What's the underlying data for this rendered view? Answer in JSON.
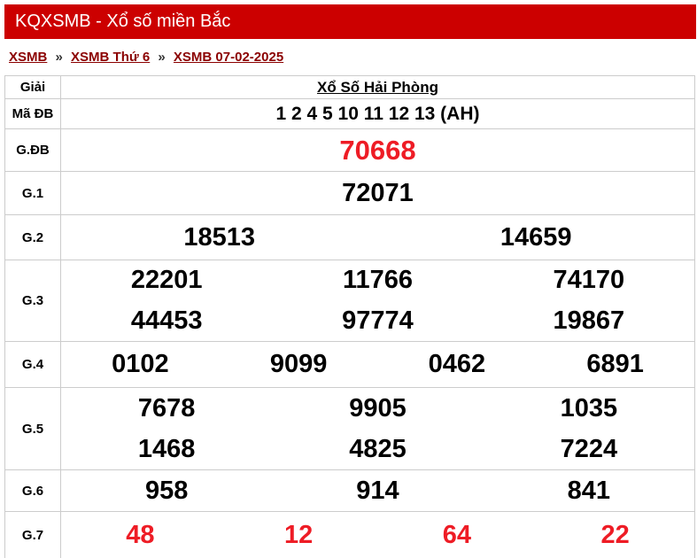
{
  "page": {
    "title_bar": "KQXSMB - Xổ số miền Bắc"
  },
  "breadcrumb": {
    "separator": "»",
    "links": [
      "XSMB",
      "XSMB Thứ 6",
      "XSMB 07-02-2025"
    ]
  },
  "results": {
    "header_label": "Giải",
    "province": "Xổ Số Hải Phòng",
    "rows": [
      {
        "id": "ma-db",
        "label": "Mã ĐB",
        "lines": [
          [
            "1 2 4 5 10 11 12 13 (AH)"
          ]
        ]
      },
      {
        "id": "g-db",
        "label": "G.ĐB",
        "lines": [
          [
            "70668"
          ]
        ]
      },
      {
        "id": "g1",
        "label": "G.1",
        "lines": [
          [
            "72071"
          ]
        ]
      },
      {
        "id": "g2",
        "label": "G.2",
        "lines": [
          [
            "18513",
            "14659"
          ]
        ]
      },
      {
        "id": "g3",
        "label": "G.3",
        "lines": [
          [
            "22201",
            "11766",
            "74170"
          ],
          [
            "44453",
            "97774",
            "19867"
          ]
        ]
      },
      {
        "id": "g4",
        "label": "G.4",
        "lines": [
          [
            "0102",
            "9099",
            "0462",
            "6891"
          ]
        ]
      },
      {
        "id": "g5",
        "label": "G.5",
        "lines": [
          [
            "7678",
            "9905",
            "1035"
          ],
          [
            "1468",
            "4825",
            "7224"
          ]
        ]
      },
      {
        "id": "g6",
        "label": "G.6",
        "lines": [
          [
            "958",
            "914",
            "841"
          ]
        ]
      },
      {
        "id": "g7",
        "label": "G.7",
        "lines": [
          [
            "48",
            "12",
            "64",
            "22"
          ]
        ]
      }
    ]
  },
  "colors": {
    "header_bg": "#cc0000",
    "header_text": "#ffffff",
    "link": "#8b0000",
    "special_number": "#ee1c25",
    "number": "#000000",
    "border": "#cccccc"
  }
}
